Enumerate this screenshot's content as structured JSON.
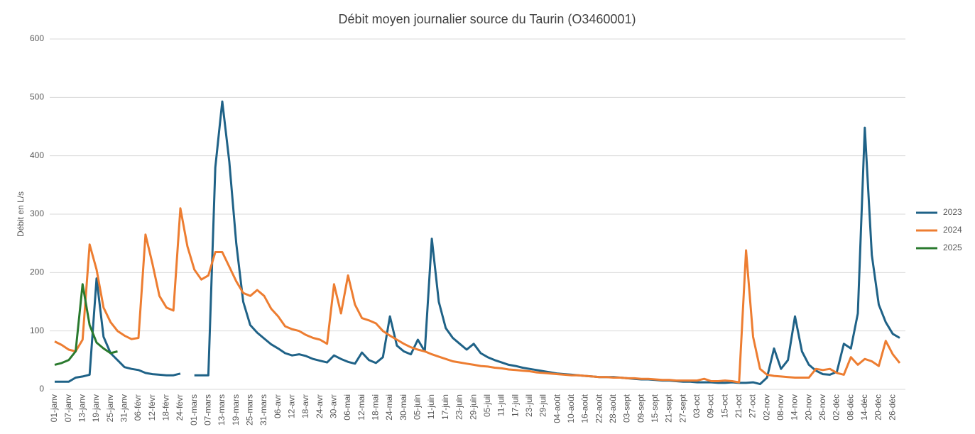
{
  "chart_data": {
    "type": "line",
    "title": "Débit moyen journalier source du Taurin (O3460001)",
    "y_label": "Débit en L/s",
    "categories": [
      "01-janv",
      null,
      "07-janv",
      null,
      "13-janv",
      null,
      "19-janv",
      null,
      "25-janv",
      null,
      "31-janv",
      null,
      "06-févr",
      null,
      "12-févr",
      null,
      "18-févr",
      null,
      "24-févr",
      null,
      "01-mars",
      null,
      "07-mars",
      null,
      "13-mars",
      null,
      "19-mars",
      null,
      "25-mars",
      null,
      "31-mars",
      null,
      "06-avr",
      null,
      "12-avr",
      null,
      "18-avr",
      null,
      "24-avr",
      null,
      "30-avr",
      null,
      "06-mai",
      null,
      "12-mai",
      null,
      "18-mai",
      null,
      "24-mai",
      null,
      "30-mai",
      null,
      "05-juin",
      null,
      "11-juin",
      null,
      "17-juin",
      null,
      "23-juin",
      null,
      "29-juin",
      null,
      "05-juil",
      null,
      "11-juil",
      null,
      "17-juil",
      null,
      "23-juil",
      null,
      "29-juil",
      null,
      "04-août",
      null,
      "10-août",
      null,
      "16-août",
      null,
      "22-août",
      null,
      "28-août",
      null,
      "03-sept",
      null,
      "09-sept",
      null,
      "15-sept",
      null,
      "21-sept",
      null,
      "27-sept",
      null,
      "03-oct",
      null,
      "09-oct",
      null,
      "15-oct",
      null,
      "21-oct",
      null,
      "27-oct",
      null,
      "02-nov",
      null,
      "08-nov",
      null,
      "14-nov",
      null,
      "20-nov",
      null,
      "26-nov",
      null,
      "02-déc",
      null,
      "08-déc",
      null,
      "14-déc",
      null,
      "20-déc",
      null,
      "26-déc",
      null
    ],
    "series": [
      {
        "name": "2023",
        "color": "#1f6287",
        "values": [
          13,
          13,
          13,
          20,
          22,
          25,
          190,
          90,
          62,
          50,
          38,
          35,
          33,
          28,
          26,
          25,
          24,
          24,
          27,
          null,
          24,
          24,
          24,
          380,
          493,
          390,
          250,
          150,
          110,
          97,
          87,
          77,
          70,
          62,
          58,
          60,
          57,
          52,
          49,
          46,
          58,
          52,
          47,
          44,
          63,
          50,
          45,
          55,
          125,
          75,
          65,
          60,
          85,
          65,
          258,
          150,
          105,
          88,
          78,
          68,
          78,
          62,
          55,
          50,
          46,
          42,
          40,
          37,
          35,
          33,
          31,
          29,
          27,
          26,
          25,
          24,
          23,
          22,
          21,
          21,
          21,
          20,
          19,
          18,
          17,
          17,
          16,
          15,
          15,
          14,
          13,
          13,
          12,
          12,
          12,
          11,
          11,
          12,
          11,
          11,
          12,
          9,
          20,
          70,
          35,
          50,
          125,
          65,
          42,
          32,
          26,
          25,
          30,
          78,
          70,
          130,
          448,
          230,
          145,
          115,
          95,
          88
        ]
      },
      {
        "name": "2024",
        "color": "#ed7d31",
        "values": [
          82,
          76,
          68,
          65,
          85,
          248,
          205,
          140,
          115,
          100,
          92,
          86,
          88,
          265,
          215,
          160,
          140,
          135,
          310,
          245,
          205,
          188,
          195,
          235,
          235,
          210,
          185,
          165,
          160,
          170,
          160,
          138,
          125,
          108,
          103,
          100,
          93,
          88,
          85,
          78,
          180,
          130,
          195,
          145,
          122,
          118,
          113,
          100,
          92,
          85,
          78,
          72,
          68,
          65,
          60,
          56,
          52,
          48,
          46,
          44,
          42,
          40,
          39,
          37,
          36,
          34,
          33,
          32,
          31,
          29,
          28,
          27,
          26,
          25,
          24,
          24,
          23,
          22,
          21,
          21,
          20,
          20,
          19,
          19,
          18,
          18,
          17,
          16,
          16,
          15,
          15,
          15,
          15,
          18,
          14,
          14,
          15,
          14,
          12,
          238,
          90,
          35,
          25,
          23,
          22,
          21,
          20,
          20,
          20,
          35,
          33,
          35,
          28,
          25,
          55,
          42,
          52,
          48,
          40,
          83,
          60,
          45
        ]
      },
      {
        "name": "2025",
        "color": "#2a7a2e",
        "values": [
          42,
          45,
          50,
          65,
          180,
          110,
          80,
          70,
          62,
          65,
          null,
          null,
          null,
          null,
          null,
          null,
          null,
          null,
          null,
          null,
          null,
          null,
          null,
          null,
          null,
          null,
          null,
          null,
          null,
          null,
          null,
          null,
          null,
          null,
          null,
          null,
          null,
          null,
          null,
          null,
          null,
          null,
          null,
          null,
          null,
          null,
          null,
          null,
          null,
          null,
          null,
          null,
          null,
          null,
          null,
          null,
          null,
          null,
          null,
          null,
          null,
          null,
          null,
          null,
          null,
          null,
          null,
          null,
          null,
          null,
          null,
          null,
          null,
          null,
          null,
          null,
          null,
          null,
          null,
          null,
          null,
          null,
          null,
          null,
          null,
          null,
          null,
          null,
          null,
          null,
          null,
          null,
          null,
          null,
          null,
          null,
          null,
          null,
          null,
          null,
          null,
          null,
          null,
          null,
          null,
          null,
          null,
          null,
          null,
          null,
          null,
          null,
          null,
          null,
          null,
          null,
          null,
          null,
          null,
          null,
          null,
          null
        ]
      }
    ],
    "ylim": [
      0,
      600
    ],
    "yticks": [
      0,
      100,
      200,
      300,
      400,
      500,
      600
    ],
    "grid": true,
    "legend": "right"
  }
}
